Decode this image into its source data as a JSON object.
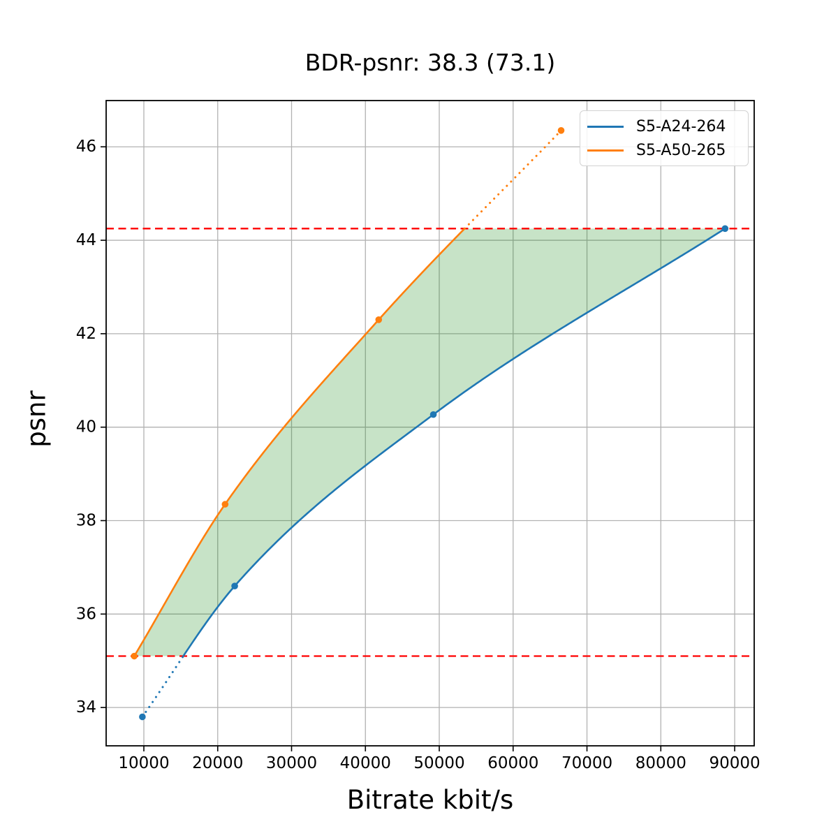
{
  "chart_data": {
    "type": "line",
    "title": "BDR-psnr: 38.3 (73.1)",
    "xlabel": "Bitrate kbit/s",
    "ylabel": "psnr",
    "xlim": [
      4894,
      92644
    ],
    "ylim": [
      33.18,
      46.99
    ],
    "x_tick_values": [
      10000,
      20000,
      30000,
      40000,
      50000,
      60000,
      70000,
      80000,
      90000
    ],
    "x_tick_labels": [
      "10000",
      "20000",
      "30000",
      "40000",
      "50000",
      "60000",
      "70000",
      "80000",
      "90000"
    ],
    "y_tick_values": [
      34,
      36,
      38,
      40,
      42,
      44,
      46
    ],
    "y_tick_labels": [
      "34",
      "36",
      "38",
      "40",
      "42",
      "44",
      "46"
    ],
    "grid": true,
    "legend": {
      "position": "upper right",
      "entries": [
        "S5-A24-264",
        "S5-A50-265"
      ]
    },
    "series": [
      {
        "name": "S5-A24-264",
        "color": "#1f77b4",
        "points": [
          [
            9800,
            33.8
          ],
          [
            22300,
            36.6
          ],
          [
            49200,
            40.27
          ],
          [
            88700,
            44.25
          ]
        ]
      },
      {
        "name": "S5-A50-265",
        "color": "#ff7f0e",
        "points": [
          [
            8700,
            35.1
          ],
          [
            21000,
            38.35
          ],
          [
            41800,
            42.3
          ],
          [
            66500,
            46.35
          ]
        ]
      }
    ],
    "bd_thresholds": {
      "low": 35.1,
      "high": 44.25,
      "color": "#ff0000",
      "style": "dashed"
    },
    "overlap_fill": {
      "color": "#008000",
      "opacity": 0.22,
      "upper_series": 1,
      "lower_series": 0
    },
    "style": {
      "grid_color": "#b2b2b2",
      "spine_color": "#000000",
      "text_color": "#000000",
      "background": "#ffffff"
    }
  }
}
